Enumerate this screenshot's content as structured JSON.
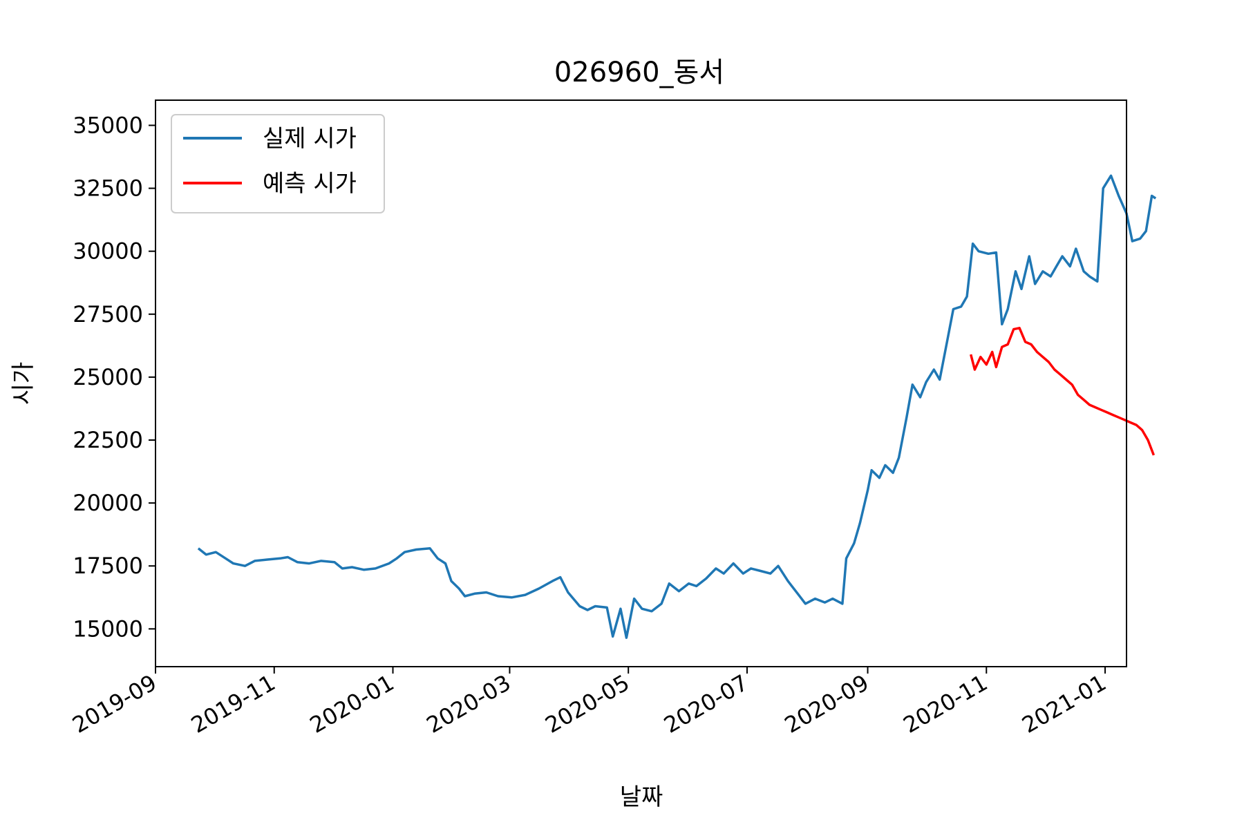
{
  "chart_data": {
    "type": "line",
    "title": "026960_동서",
    "xlabel": "날짜",
    "ylabel": "시가",
    "xlim": [
      "2019-09-01",
      "2021-01-12"
    ],
    "ylim": [
      13500,
      36000
    ],
    "x_ticks": [
      "2019-09",
      "2019-11",
      "2020-01",
      "2020-03",
      "2020-05",
      "2020-07",
      "2020-09",
      "2020-11",
      "2021-01"
    ],
    "y_ticks": [
      15000,
      17500,
      20000,
      22500,
      25000,
      27500,
      30000,
      32500,
      35000
    ],
    "legend_position": "upper-left",
    "grid": false,
    "series": [
      {
        "name": "실제 시가",
        "color": "#1f77b4",
        "points": [
          [
            "2019-09-23",
            18200
          ],
          [
            "2019-09-27",
            17950
          ],
          [
            "2019-10-02",
            18050
          ],
          [
            "2019-10-07",
            17800
          ],
          [
            "2019-10-11",
            17600
          ],
          [
            "2019-10-17",
            17500
          ],
          [
            "2019-10-22",
            17700
          ],
          [
            "2019-10-28",
            17750
          ],
          [
            "2019-11-04",
            17800
          ],
          [
            "2019-11-08",
            17850
          ],
          [
            "2019-11-13",
            17650
          ],
          [
            "2019-11-19",
            17600
          ],
          [
            "2019-11-25",
            17700
          ],
          [
            "2019-12-02",
            17650
          ],
          [
            "2019-12-06",
            17400
          ],
          [
            "2019-12-11",
            17450
          ],
          [
            "2019-12-17",
            17350
          ],
          [
            "2019-12-23",
            17400
          ],
          [
            "2019-12-30",
            17600
          ],
          [
            "2020-01-03",
            17800
          ],
          [
            "2020-01-07",
            18050
          ],
          [
            "2020-01-13",
            18150
          ],
          [
            "2020-01-20",
            18200
          ],
          [
            "2020-01-24",
            17800
          ],
          [
            "2020-01-28",
            17600
          ],
          [
            "2020-01-31",
            16900
          ],
          [
            "2020-02-04",
            16600
          ],
          [
            "2020-02-07",
            16300
          ],
          [
            "2020-02-12",
            16400
          ],
          [
            "2020-02-18",
            16450
          ],
          [
            "2020-02-24",
            16300
          ],
          [
            "2020-03-02",
            16250
          ],
          [
            "2020-03-09",
            16350
          ],
          [
            "2020-03-16",
            16600
          ],
          [
            "2020-03-23",
            16900
          ],
          [
            "2020-03-27",
            17050
          ],
          [
            "2020-03-31",
            16450
          ],
          [
            "2020-04-06",
            15900
          ],
          [
            "2020-04-10",
            15750
          ],
          [
            "2020-04-14",
            15900
          ],
          [
            "2020-04-20",
            15850
          ],
          [
            "2020-04-23",
            14700
          ],
          [
            "2020-04-27",
            15800
          ],
          [
            "2020-04-30",
            14650
          ],
          [
            "2020-05-04",
            16200
          ],
          [
            "2020-05-08",
            15800
          ],
          [
            "2020-05-13",
            15700
          ],
          [
            "2020-05-18",
            16000
          ],
          [
            "2020-05-22",
            16800
          ],
          [
            "2020-05-27",
            16500
          ],
          [
            "2020-06-01",
            16800
          ],
          [
            "2020-06-05",
            16700
          ],
          [
            "2020-06-10",
            17000
          ],
          [
            "2020-06-15",
            17400
          ],
          [
            "2020-06-19",
            17200
          ],
          [
            "2020-06-24",
            17600
          ],
          [
            "2020-06-29",
            17200
          ],
          [
            "2020-07-03",
            17400
          ],
          [
            "2020-07-08",
            17300
          ],
          [
            "2020-07-13",
            17200
          ],
          [
            "2020-07-17",
            17500
          ],
          [
            "2020-07-22",
            16900
          ],
          [
            "2020-07-27",
            16400
          ],
          [
            "2020-07-31",
            16000
          ],
          [
            "2020-08-05",
            16200
          ],
          [
            "2020-08-10",
            16050
          ],
          [
            "2020-08-14",
            16200
          ],
          [
            "2020-08-19",
            16000
          ],
          [
            "2020-08-21",
            17800
          ],
          [
            "2020-08-25",
            18400
          ],
          [
            "2020-08-28",
            19200
          ],
          [
            "2020-09-01",
            20500
          ],
          [
            "2020-09-03",
            21300
          ],
          [
            "2020-09-07",
            21000
          ],
          [
            "2020-09-10",
            21500
          ],
          [
            "2020-09-14",
            21200
          ],
          [
            "2020-09-17",
            21800
          ],
          [
            "2020-09-21",
            23400
          ],
          [
            "2020-09-24",
            24700
          ],
          [
            "2020-09-28",
            24200
          ],
          [
            "2020-10-01",
            24800
          ],
          [
            "2020-10-05",
            25300
          ],
          [
            "2020-10-08",
            24900
          ],
          [
            "2020-10-12",
            26500
          ],
          [
            "2020-10-15",
            27700
          ],
          [
            "2020-10-19",
            27800
          ],
          [
            "2020-10-22",
            28200
          ],
          [
            "2020-10-25",
            30300
          ],
          [
            "2020-10-28",
            30000
          ],
          [
            "2020-11-02",
            29900
          ],
          [
            "2020-11-06",
            29950
          ],
          [
            "2020-11-09",
            27100
          ],
          [
            "2020-11-12",
            27700
          ],
          [
            "2020-11-16",
            29200
          ],
          [
            "2020-11-19",
            28500
          ],
          [
            "2020-11-23",
            29800
          ],
          [
            "2020-11-26",
            28700
          ],
          [
            "2020-11-30",
            29200
          ],
          [
            "2020-12-04",
            29000
          ],
          [
            "2020-12-07",
            29400
          ],
          [
            "2020-12-10",
            29800
          ],
          [
            "2020-12-14",
            29400
          ],
          [
            "2020-12-17",
            30100
          ],
          [
            "2020-12-21",
            29200
          ],
          [
            "2020-12-24",
            29000
          ],
          [
            "2020-12-28",
            28800
          ],
          [
            "2020-12-31",
            32500
          ],
          [
            "2021-01-04",
            33000
          ],
          [
            "2021-01-08",
            32200
          ],
          [
            "2021-01-12",
            31500
          ],
          [
            "2021-01-15",
            30400
          ],
          [
            "2021-01-19",
            30500
          ],
          [
            "2021-01-22",
            30800
          ],
          [
            "2021-01-25",
            32200
          ],
          [
            "2021-01-27",
            32100
          ]
        ]
      },
      {
        "name": "예측 시가",
        "color": "#ff0000",
        "points": [
          [
            "2020-10-24",
            25900
          ],
          [
            "2020-10-26",
            25300
          ],
          [
            "2020-10-29",
            25800
          ],
          [
            "2020-11-01",
            25500
          ],
          [
            "2020-11-04",
            26000
          ],
          [
            "2020-11-06",
            25400
          ],
          [
            "2020-11-09",
            26200
          ],
          [
            "2020-11-12",
            26300
          ],
          [
            "2020-11-15",
            26900
          ],
          [
            "2020-11-18",
            26950
          ],
          [
            "2020-11-21",
            26400
          ],
          [
            "2020-11-24",
            26300
          ],
          [
            "2020-11-27",
            26000
          ],
          [
            "2020-11-30",
            25800
          ],
          [
            "2020-12-03",
            25600
          ],
          [
            "2020-12-06",
            25300
          ],
          [
            "2020-12-09",
            25100
          ],
          [
            "2020-12-12",
            24900
          ],
          [
            "2020-12-15",
            24700
          ],
          [
            "2020-12-18",
            24300
          ],
          [
            "2020-12-21",
            24100
          ],
          [
            "2020-12-24",
            23900
          ],
          [
            "2020-12-27",
            23800
          ],
          [
            "2020-12-30",
            23700
          ],
          [
            "2021-01-02",
            23600
          ],
          [
            "2021-01-05",
            23500
          ],
          [
            "2021-01-08",
            23400
          ],
          [
            "2021-01-11",
            23300
          ],
          [
            "2021-01-14",
            23200
          ],
          [
            "2021-01-17",
            23100
          ],
          [
            "2021-01-20",
            22900
          ],
          [
            "2021-01-23",
            22500
          ],
          [
            "2021-01-26",
            21900
          ]
        ]
      }
    ]
  }
}
